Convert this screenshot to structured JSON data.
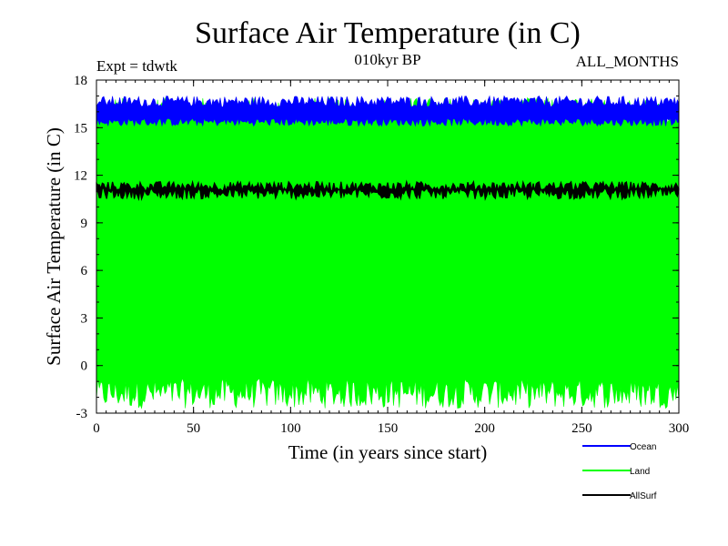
{
  "chart_data": {
    "type": "line",
    "title": "Surface Air Temperature (in C)",
    "experiment_label": "Expt = tdwtk",
    "period_label": "010kyr BP",
    "months_label": "ALL_MONTHS",
    "xlabel": "Time (in years since start)",
    "ylabel": "Surface Air Temperature (in C)",
    "xlim": [
      0,
      300
    ],
    "ylim": [
      -3,
      18
    ],
    "x_ticks": [
      0,
      50,
      100,
      150,
      200,
      250,
      300
    ],
    "y_ticks": [
      -3,
      0,
      3,
      6,
      9,
      12,
      15,
      18
    ],
    "legend_position": "bottom-right",
    "series": [
      {
        "name": "Ocean",
        "color": "#0000ff",
        "min_range": [
          15.1,
          15.6
        ],
        "max_range": [
          16.3,
          17.0
        ],
        "mean": 15.9
      },
      {
        "name": "Land",
        "color": "#00ff00",
        "min_range": [
          -2.7,
          -0.8
        ],
        "max_range": [
          15.3,
          16.9
        ],
        "mean": 7.0
      },
      {
        "name": "AllSurf",
        "color": "#000000",
        "min_range": [
          10.5,
          11.2
        ],
        "max_range": [
          11.0,
          11.6
        ],
        "mean": 11.0
      }
    ]
  }
}
